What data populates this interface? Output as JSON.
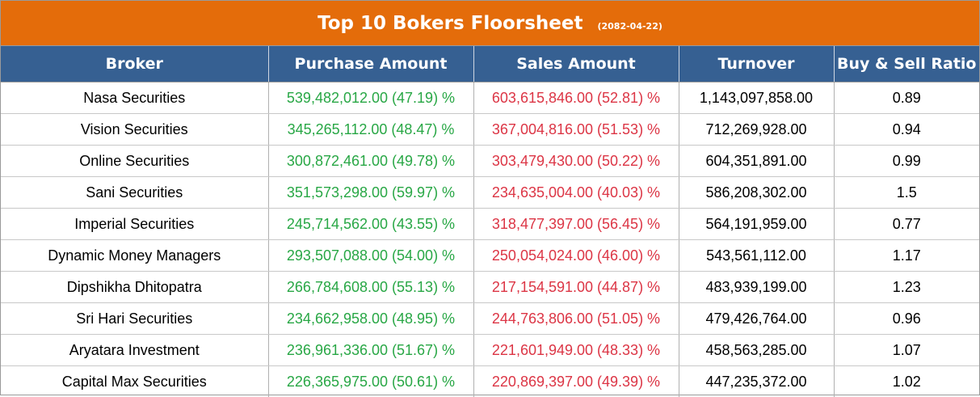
{
  "title": "Top 10 Bokers Floorsheet",
  "date": "(2082-04-22)",
  "colors": {
    "title_bg": "#e46c0a",
    "header_bg": "#366092",
    "buy_text": "#28a745",
    "sell_text": "#dc3545"
  },
  "headers": [
    "Broker",
    "Purchase Amount",
    "Sales Amount",
    "Turnover",
    "Buy & Sell Ratio"
  ],
  "rows": [
    {
      "broker": "Nasa Securities",
      "purchase": "539,482,012.00 (47.19) %",
      "sales": "603,615,846.00 (52.81) %",
      "turnover": "1,143,097,858.00",
      "ratio": "0.89"
    },
    {
      "broker": "Vision Securities",
      "purchase": "345,265,112.00 (48.47) %",
      "sales": "367,004,816.00 (51.53) %",
      "turnover": "712,269,928.00",
      "ratio": "0.94"
    },
    {
      "broker": "Online Securities",
      "purchase": "300,872,461.00 (49.78) %",
      "sales": "303,479,430.00 (50.22) %",
      "turnover": "604,351,891.00",
      "ratio": "0.99"
    },
    {
      "broker": "Sani Securities",
      "purchase": "351,573,298.00 (59.97) %",
      "sales": "234,635,004.00 (40.03) %",
      "turnover": "586,208,302.00",
      "ratio": "1.5"
    },
    {
      "broker": "Imperial Securities",
      "purchase": "245,714,562.00 (43.55) %",
      "sales": "318,477,397.00 (56.45) %",
      "turnover": "564,191,959.00",
      "ratio": "0.77"
    },
    {
      "broker": "Dynamic Money Managers",
      "purchase": "293,507,088.00 (54.00) %",
      "sales": "250,054,024.00 (46.00) %",
      "turnover": "543,561,112.00",
      "ratio": "1.17"
    },
    {
      "broker": "Dipshikha Dhitopatra",
      "purchase": "266,784,608.00 (55.13) %",
      "sales": "217,154,591.00 (44.87) %",
      "turnover": "483,939,199.00",
      "ratio": "1.23"
    },
    {
      "broker": "Sri Hari Securities",
      "purchase": "234,662,958.00 (48.95) %",
      "sales": "244,763,806.00 (51.05) %",
      "turnover": "479,426,764.00",
      "ratio": "0.96"
    },
    {
      "broker": "Aryatara Investment",
      "purchase": "236,961,336.00 (51.67) %",
      "sales": "221,601,949.00 (48.33) %",
      "turnover": "458,563,285.00",
      "ratio": "1.07"
    },
    {
      "broker": "Capital Max Securities",
      "purchase": "226,365,975.00 (50.61) %",
      "sales": "220,869,397.00 (49.39) %",
      "turnover": "447,235,372.00",
      "ratio": "1.02"
    }
  ]
}
